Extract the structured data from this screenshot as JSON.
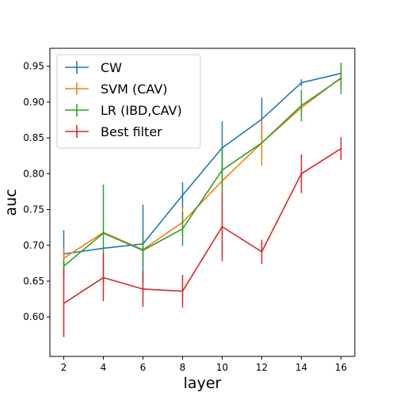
{
  "chart_data": {
    "type": "line",
    "xlabel": "layer",
    "ylabel": "auc",
    "x": [
      2,
      4,
      6,
      8,
      10,
      12,
      14,
      16
    ],
    "xticks": [
      2,
      4,
      6,
      8,
      10,
      12,
      14,
      16
    ],
    "xlim": [
      1.3,
      16.7
    ],
    "yticks": [
      0.6,
      0.65,
      0.7,
      0.75,
      0.8,
      0.85,
      0.9,
      0.95
    ],
    "ytick_labels": [
      "0.60",
      "0.65",
      "0.70",
      "0.75",
      "0.80",
      "0.85",
      "0.90",
      "0.95"
    ],
    "ylim": [
      0.545,
      0.975
    ],
    "legend_position": "upper-left",
    "series": [
      {
        "name": "CW",
        "color": "#1f77b4",
        "values": [
          0.688,
          0.696,
          0.702,
          0.77,
          0.836,
          0.876,
          0.927,
          0.94
        ],
        "errors": [
          0.033,
          0.0,
          0.055,
          0.018,
          0.037,
          0.03,
          0.005,
          0.0
        ]
      },
      {
        "name": "SVM (CAV)",
        "color": "#ff7f0e",
        "values": [
          0.682,
          0.718,
          0.694,
          0.732,
          0.79,
          0.843,
          0.892,
          0.934
        ],
        "errors": [
          0.013,
          0.0,
          0.0,
          0.02,
          0.017,
          0.032,
          0.0,
          0.013
        ]
      },
      {
        "name": "LR (IBD,CAV)",
        "color": "#2ca02c",
        "values": [
          0.671,
          0.717,
          0.693,
          0.723,
          0.805,
          0.843,
          0.895,
          0.933
        ],
        "errors": [
          0.008,
          0.068,
          0.022,
          0.024,
          0.03,
          0.0,
          0.022,
          0.022
        ]
      },
      {
        "name": "Best filter",
        "color": "#d62728",
        "values": [
          0.619,
          0.655,
          0.639,
          0.636,
          0.726,
          0.691,
          0.8,
          0.835
        ],
        "errors": [
          0.047,
          0.033,
          0.025,
          0.023,
          0.048,
          0.017,
          0.027,
          0.016
        ]
      }
    ]
  }
}
